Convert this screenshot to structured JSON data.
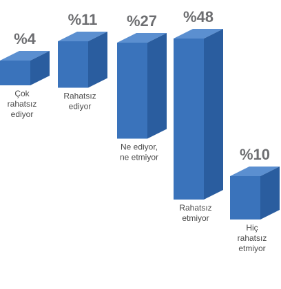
{
  "chart_data": {
    "type": "bar",
    "categories": [
      [
        "Çok",
        "rahatsız",
        "ediyor"
      ],
      [
        "Rahatsız",
        "ediyor"
      ],
      [
        "Ne ediyor,",
        "ne etmiyor"
      ],
      [
        "Rahatsız",
        "etmiyor"
      ],
      [
        "Hiç",
        "rahatsız",
        "etmiyor"
      ]
    ],
    "values": [
      4,
      11,
      27,
      48,
      10
    ],
    "value_labels": [
      "%4",
      "%11",
      "%27",
      "%48",
      "%10"
    ],
    "colors": {
      "front": "#3a73bb",
      "side": "#2a5d9f",
      "top": "#5b8fd0",
      "value_text": "#6d6e71",
      "label_text": "#4a4a4a"
    }
  }
}
